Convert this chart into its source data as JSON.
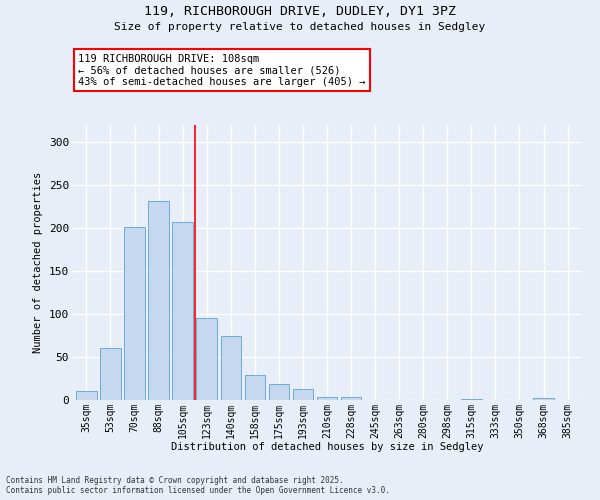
{
  "title_line1": "119, RICHBOROUGH DRIVE, DUDLEY, DY1 3PZ",
  "title_line2": "Size of property relative to detached houses in Sedgley",
  "xlabel": "Distribution of detached houses by size in Sedgley",
  "ylabel": "Number of detached properties",
  "categories": [
    "35sqm",
    "53sqm",
    "70sqm",
    "88sqm",
    "105sqm",
    "123sqm",
    "140sqm",
    "158sqm",
    "175sqm",
    "193sqm",
    "210sqm",
    "228sqm",
    "245sqm",
    "263sqm",
    "280sqm",
    "298sqm",
    "315sqm",
    "333sqm",
    "350sqm",
    "368sqm",
    "385sqm"
  ],
  "values": [
    10,
    60,
    201,
    232,
    207,
    95,
    75,
    29,
    19,
    13,
    4,
    3,
    0,
    0,
    0,
    0,
    1,
    0,
    0,
    2,
    0
  ],
  "bar_color": "#c5d8f0",
  "bar_edge_color": "#6aacd8",
  "red_line_x": 4.5,
  "annotation_text": "119 RICHBOROUGH DRIVE: 108sqm\n← 56% of detached houses are smaller (526)\n43% of semi-detached houses are larger (405) →",
  "annotation_box_color": "white",
  "annotation_box_edge": "red",
  "red_line_color": "red",
  "footer_line1": "Contains HM Land Registry data © Crown copyright and database right 2025.",
  "footer_line2": "Contains public sector information licensed under the Open Government Licence v3.0.",
  "ylim": [
    0,
    320
  ],
  "background_color": "#e8eef8",
  "grid_color": "white",
  "yticks": [
    0,
    50,
    100,
    150,
    200,
    250,
    300
  ]
}
